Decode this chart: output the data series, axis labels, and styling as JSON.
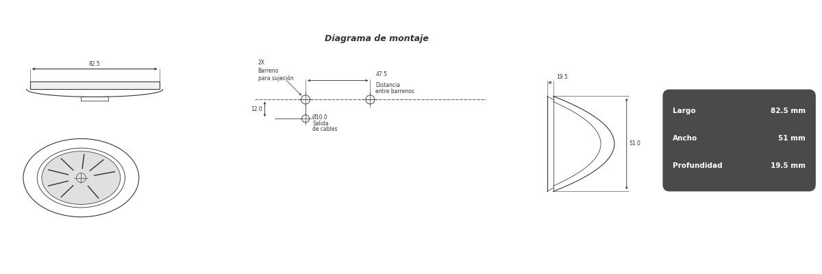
{
  "bg_color": "#ffffff",
  "line_color": "#333333",
  "dark_box_color": "#4a4a4a",
  "white_text": "#ffffff",
  "title_montaje": "Diagrama de montaje",
  "dim_largo": "82.5",
  "dim_ancho": "51",
  "dim_prof": "19.5",
  "label_largo": "Largo",
  "label_ancho": "Ancho",
  "label_prof": "Profundidad",
  "unit": "mm",
  "top_width_label": "82.5",
  "side_height_label": "51.0",
  "side_depth_label": "19.5",
  "dist_barrenos": "47.5",
  "offset_barreno": "12.0",
  "hole_size": "Ø10.0",
  "label_2x": "2X",
  "label_barreno": "Barreno",
  "label_para": "para sujeción",
  "label_dist": "Distancia",
  "label_entre": "entre barrenos",
  "label_salida": "Salida",
  "label_cables": "de cables"
}
